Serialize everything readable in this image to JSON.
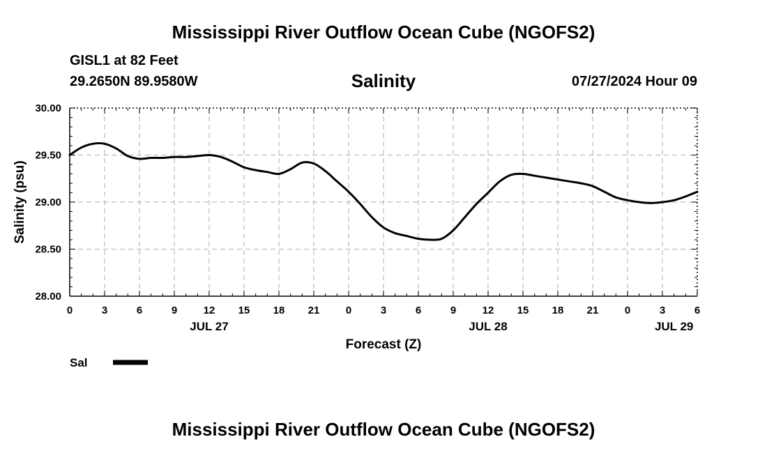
{
  "page_title_top": "Mississippi River Outflow Ocean Cube (NGOFS2)",
  "page_title_bottom": "Mississippi River Outflow Ocean Cube (NGOFS2)",
  "station": {
    "name": "GISL1 at 82 Feet",
    "coords": "29.2650N  89.9580W"
  },
  "datetime": "07/27/2024 Hour 09",
  "chart_data": {
    "type": "line",
    "title": "Salinity",
    "xlabel": "Forecast (Z)",
    "ylabel": "Salinity (psu)",
    "ylim": [
      28.0,
      30.0
    ],
    "xlim": [
      0,
      54
    ],
    "grid": true,
    "y_ticks": [
      "28.00",
      "28.50",
      "29.00",
      "29.50",
      "30.00"
    ],
    "x_ticks": [
      "0",
      "3",
      "6",
      "9",
      "12",
      "15",
      "18",
      "21",
      "0",
      "3",
      "6",
      "9",
      "12",
      "15",
      "18",
      "21",
      "0",
      "3",
      "6"
    ],
    "day_labels": [
      {
        "label": "JUL 27",
        "x": 12
      },
      {
        "label": "JUL 28",
        "x": 36
      },
      {
        "label": "JUL 29",
        "x": 52
      }
    ],
    "legend": {
      "placement": "bottom-left",
      "label": "Sal"
    },
    "series": [
      {
        "name": "Sal",
        "x": [
          0,
          1,
          2,
          3,
          4,
          5,
          6,
          7,
          8,
          9,
          10,
          11,
          12,
          13,
          14,
          15,
          16,
          17,
          18,
          19,
          20,
          21,
          22,
          23,
          24,
          25,
          26,
          27,
          28,
          29,
          30,
          31,
          32,
          33,
          34,
          35,
          36,
          37,
          38,
          39,
          40,
          41,
          42,
          43,
          44,
          45,
          46,
          47,
          48,
          49,
          50,
          51,
          52,
          53,
          54
        ],
        "values": [
          29.5,
          29.58,
          29.62,
          29.62,
          29.57,
          29.49,
          29.46,
          29.47,
          29.47,
          29.48,
          29.48,
          29.49,
          29.5,
          29.48,
          29.43,
          29.37,
          29.34,
          29.32,
          29.3,
          29.35,
          29.42,
          29.41,
          29.33,
          29.22,
          29.11,
          28.98,
          28.84,
          28.73,
          28.67,
          28.64,
          28.61,
          28.6,
          28.61,
          28.7,
          28.84,
          28.98,
          29.1,
          29.22,
          29.29,
          29.3,
          29.28,
          29.26,
          29.24,
          29.22,
          29.2,
          29.17,
          29.11,
          29.05,
          29.02,
          29.0,
          28.99,
          29.0,
          29.02,
          29.06,
          29.11
        ]
      }
    ]
  }
}
